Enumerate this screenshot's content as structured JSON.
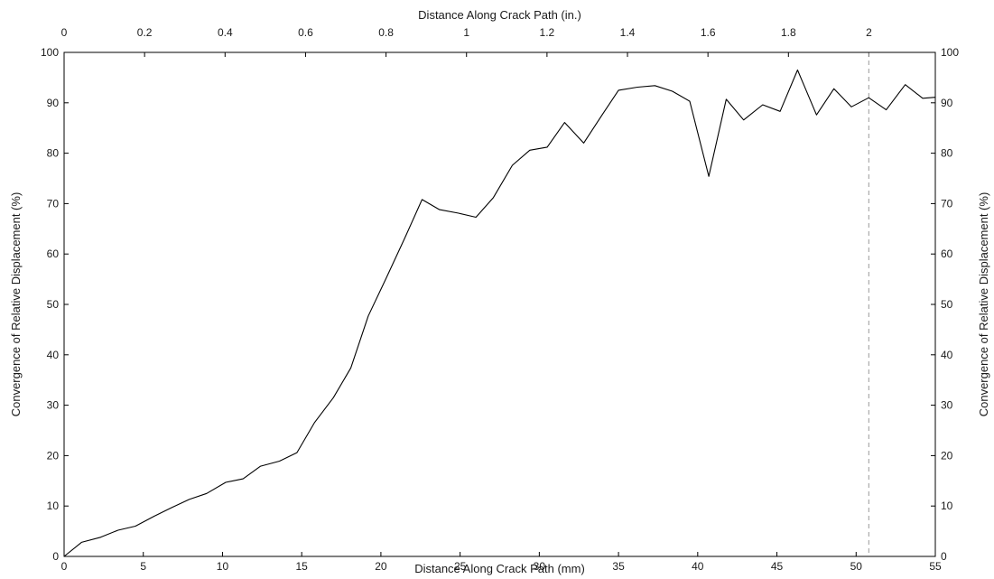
{
  "chart_data": {
    "type": "line",
    "title": "",
    "xlabel": "Distance Along Crack Path (mm)",
    "x2label": "Distance Along Crack Path (in.)",
    "ylabel": "Convergence of Relative Displacement (%)",
    "y2label": "Convergence of Relative Displacement (%)",
    "xlim": [
      0,
      55
    ],
    "ylim": [
      0,
      100
    ],
    "x2lim_in": [
      0,
      2.165
    ],
    "xticks": [
      0,
      5,
      10,
      15,
      20,
      25,
      30,
      35,
      40,
      45,
      50,
      55
    ],
    "yticks": [
      0,
      10,
      20,
      30,
      40,
      50,
      60,
      70,
      80,
      90,
      100
    ],
    "x2ticks": [
      0,
      0.2,
      0.4,
      0.6,
      0.8,
      1,
      1.2,
      1.4,
      1.6,
      1.8,
      2
    ],
    "grid": false,
    "line_color": "#000000",
    "reference_line": {
      "x": 50.8,
      "style": "dashed",
      "color": "#999999"
    },
    "series": [
      {
        "x": [
          0,
          1.1,
          2.3,
          3.4,
          4.5,
          5.7,
          6.8,
          7.9,
          9.0,
          10.2,
          11.3,
          12.4,
          13.6,
          14.7,
          15.8,
          17.0,
          18.1,
          19.2,
          20.3,
          21.5,
          22.6,
          23.7,
          24.9,
          26.0,
          27.1,
          28.3,
          29.4,
          30.5,
          31.6,
          32.8,
          33.9,
          35.0,
          36.2,
          37.3,
          38.4,
          39.5,
          40.7,
          41.8,
          42.9,
          44.1,
          45.2,
          46.3,
          47.5,
          48.6,
          49.7,
          50.8,
          51.9,
          53.1,
          54.2,
          55.0
        ],
        "values": [
          0,
          2.8,
          3.8,
          5.2,
          6.0,
          8.0,
          9.7,
          11.3,
          12.5,
          14.7,
          15.4,
          17.9,
          18.9,
          20.6,
          26.5,
          31.5,
          37.4,
          47.7,
          55.0,
          63.1,
          70.8,
          68.8,
          68.1,
          67.3,
          71.2,
          77.6,
          80.6,
          81.2,
          86.1,
          82.0,
          87.3,
          92.5,
          93.1,
          93.4,
          92.3,
          90.3,
          75.4,
          90.7,
          86.6,
          89.6,
          88.3,
          96.5,
          87.6,
          92.8,
          89.2,
          91.0,
          88.6,
          93.6,
          90.9,
          91.1
        ]
      }
    ]
  }
}
